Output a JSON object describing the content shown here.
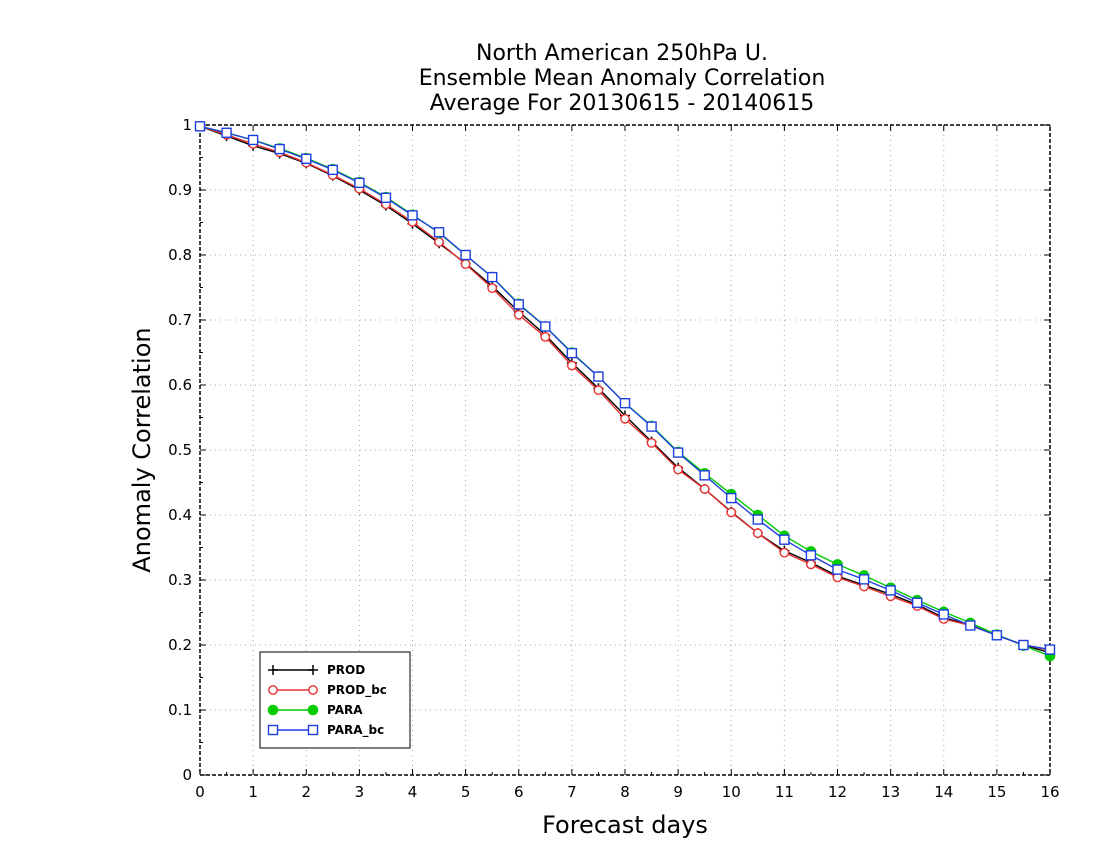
{
  "chart_data": {
    "type": "line",
    "title": [
      "North American 250hPa U.",
      "Ensemble Mean Anomaly Correlation",
      "Average For 20130615 - 20140615"
    ],
    "xlabel": "Forecast days",
    "ylabel": "Anomaly Correlation",
    "xlim": [
      0,
      16
    ],
    "ylim": [
      0,
      1
    ],
    "x_ticks": [
      0,
      1,
      2,
      3,
      4,
      5,
      6,
      7,
      8,
      9,
      10,
      11,
      12,
      13,
      14,
      15,
      16
    ],
    "y_ticks": [
      0,
      0.1,
      0.2,
      0.3,
      0.4,
      0.5,
      0.6,
      0.7,
      0.8,
      0.9,
      1
    ],
    "y_tick_labels": [
      "0",
      "0.1",
      "0.2",
      "0.3",
      "0.4",
      "0.5",
      "0.6",
      "0.7",
      "0.8",
      "0.9",
      "1"
    ],
    "grid": true,
    "legend_position": "bottom-left",
    "x": [
      0,
      0.5,
      1,
      1.5,
      2,
      2.5,
      3,
      3.5,
      4,
      4.5,
      5,
      5.5,
      6,
      6.5,
      7,
      7.5,
      8,
      8.5,
      9,
      9.5,
      10,
      10.5,
      11,
      11.5,
      12,
      12.5,
      13,
      13.5,
      14,
      14.5,
      15,
      15.5,
      16
    ],
    "series": [
      {
        "name": "PROD",
        "color": "#000000",
        "marker": "plus",
        "values": [
          0.998,
          0.983,
          0.968,
          0.956,
          0.941,
          0.922,
          0.9,
          0.876,
          0.848,
          0.818,
          0.787,
          0.752,
          0.713,
          0.677,
          0.634,
          0.595,
          0.553,
          0.513,
          0.473,
          0.44,
          0.405,
          0.372,
          0.345,
          0.327,
          0.306,
          0.292,
          0.278,
          0.262,
          0.242,
          0.231,
          0.215,
          0.2,
          0.188
        ]
      },
      {
        "name": "PROD_bc",
        "color": "#e83030",
        "marker": "circle",
        "values": [
          0.998,
          0.985,
          0.971,
          0.958,
          0.942,
          0.923,
          0.902,
          0.878,
          0.851,
          0.82,
          0.786,
          0.749,
          0.708,
          0.674,
          0.63,
          0.592,
          0.548,
          0.511,
          0.47,
          0.44,
          0.404,
          0.372,
          0.342,
          0.324,
          0.304,
          0.29,
          0.275,
          0.26,
          0.24,
          0.23,
          0.215,
          0.2,
          0.192
        ]
      },
      {
        "name": "PARA",
        "color": "#00cc00",
        "marker": "dot",
        "values": [
          0.998,
          0.988,
          0.977,
          0.964,
          0.949,
          0.932,
          0.912,
          0.889,
          0.862,
          0.834,
          0.8,
          0.766,
          0.725,
          0.69,
          0.65,
          0.613,
          0.572,
          0.537,
          0.497,
          0.464,
          0.432,
          0.4,
          0.368,
          0.344,
          0.324,
          0.307,
          0.288,
          0.269,
          0.251,
          0.234,
          0.216,
          0.199,
          0.183
        ]
      },
      {
        "name": "PARA_bc",
        "color": "#1f3fe0",
        "marker": "square",
        "values": [
          0.998,
          0.988,
          0.977,
          0.963,
          0.948,
          0.931,
          0.911,
          0.888,
          0.861,
          0.835,
          0.8,
          0.766,
          0.724,
          0.69,
          0.649,
          0.613,
          0.572,
          0.536,
          0.496,
          0.461,
          0.426,
          0.393,
          0.362,
          0.338,
          0.316,
          0.301,
          0.284,
          0.265,
          0.247,
          0.23,
          0.215,
          0.2,
          0.193
        ]
      }
    ]
  }
}
